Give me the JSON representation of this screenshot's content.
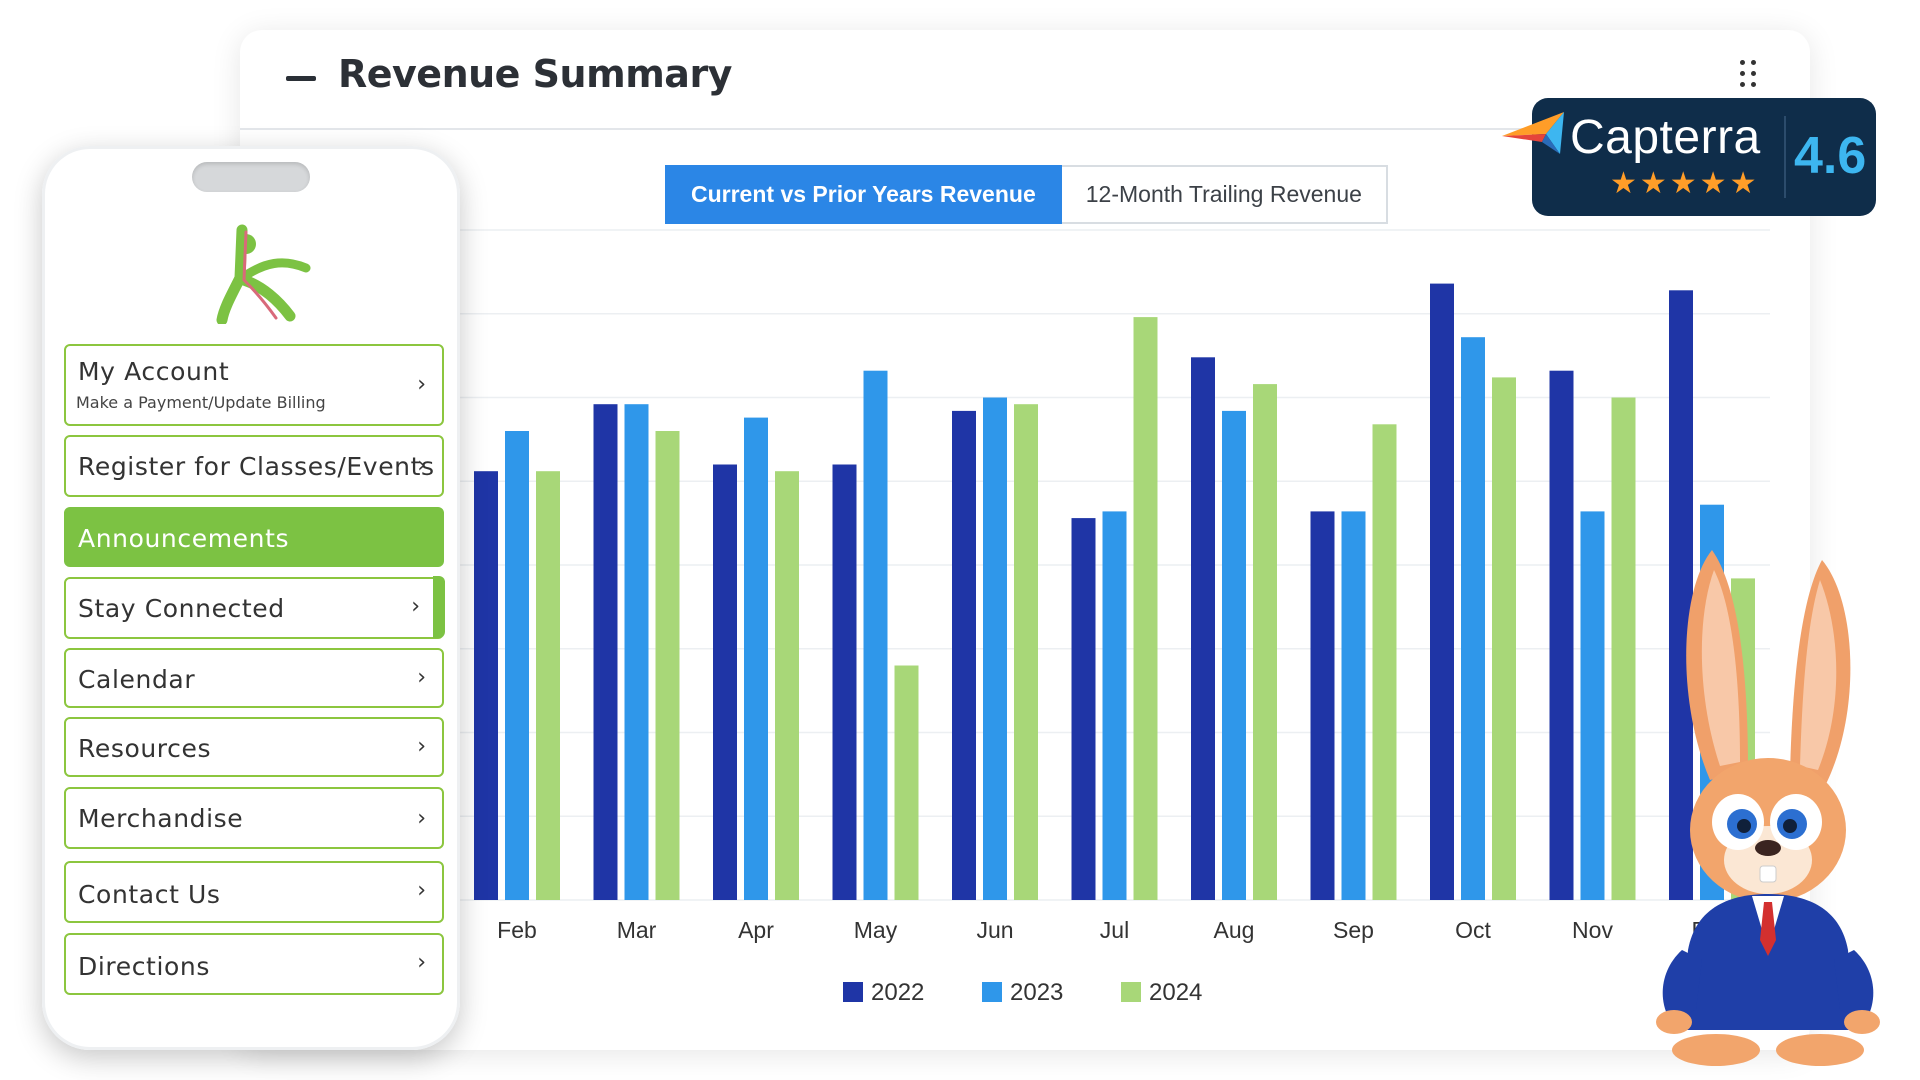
{
  "card": {
    "title": "Revenue Summary",
    "tabs": [
      "Current vs Prior Years Revenue",
      "12-Month Trailing Revenue"
    ],
    "active_tab": 0
  },
  "chart_data": {
    "type": "bar",
    "categories": [
      "Feb",
      "Mar",
      "Apr",
      "May",
      "Jun",
      "Jul",
      "Aug",
      "Sep",
      "Oct",
      "Nov",
      "Dec"
    ],
    "series": [
      {
        "name": "2022",
        "color": "#1f35a6",
        "values": [
          64,
          74,
          65,
          65,
          73,
          57,
          81,
          58,
          92,
          79,
          91
        ]
      },
      {
        "name": "2023",
        "color": "#2f97ea",
        "values": [
          70,
          74,
          72,
          79,
          75,
          58,
          73,
          58,
          84,
          58,
          59
        ]
      },
      {
        "name": "2024",
        "color": "#a8d778",
        "values": [
          64,
          70,
          64,
          35,
          74,
          87,
          77,
          71,
          78,
          75,
          48
        ]
      }
    ],
    "ylim": [
      0,
      100
    ],
    "grid": true,
    "legend": "bottom-center"
  },
  "phone": {
    "menu": [
      {
        "label": "My Account",
        "sub": "Make a Payment/Update Billing",
        "chevron": "›"
      },
      {
        "label": "Register for Classes/Events",
        "chevron": "›"
      },
      {
        "label": "Announcements",
        "active": true
      },
      {
        "label": "Stay Connected",
        "chevron": "›"
      },
      {
        "label": "Calendar",
        "chevron": "›"
      },
      {
        "label": "Resources",
        "chevron": "›"
      },
      {
        "label": "Merchandise",
        "chevron": "›"
      },
      {
        "label": "Contact Us",
        "chevron": "›"
      },
      {
        "label": "Directions",
        "chevron": "›"
      }
    ]
  },
  "capterra": {
    "name": "Capterra",
    "stars": "★★★★★",
    "rating": 4.6,
    "score": "4.6"
  },
  "colors": {
    "accent_blue": "#2b86e6",
    "brand_green": "#7cc243",
    "capterra_bg": "#0f2d4a"
  }
}
